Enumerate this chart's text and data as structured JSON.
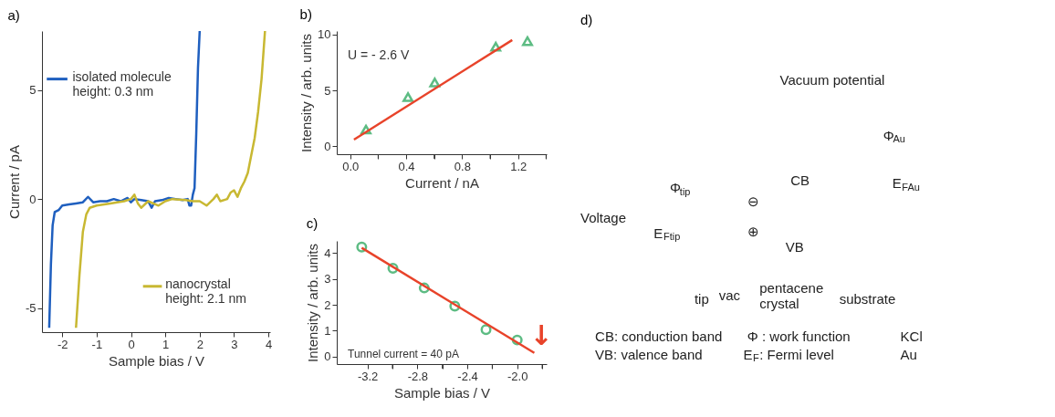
{
  "chart_data": [
    {
      "type": "line",
      "title": "a)",
      "xlabel": "Sample bias  / V",
      "ylabel": "Current / pA",
      "xlim": [
        -2.59,
        4.05
      ],
      "ylim": [
        -6.1,
        7.7
      ],
      "xticks": [
        -2,
        -1,
        0,
        1,
        2,
        3,
        4
      ],
      "yticks": [
        -5,
        0,
        5
      ],
      "grid": false,
      "legend": "left",
      "line_style": "solid",
      "series": [
        {
          "name": "isolated molecule\n height: 0.3 nm",
          "color": "#1f5fbf",
          "x": [
            -2.38,
            -2.33,
            -2.28,
            -2.22,
            -2.1,
            -2.0,
            -1.8,
            -1.6,
            -1.4,
            -1.25,
            -1.1,
            -0.9,
            -0.7,
            -0.5,
            -0.3,
            -0.1,
            0.0,
            0.1,
            0.3,
            0.5,
            0.6,
            0.7,
            0.9,
            1.1,
            1.3,
            1.5,
            1.65,
            1.7,
            1.75,
            1.8,
            1.85,
            1.9,
            1.95,
            2.0
          ],
          "values": [
            -5.9,
            -3.0,
            -1.2,
            -0.6,
            -0.5,
            -0.3,
            -0.25,
            -0.2,
            -0.15,
            0.1,
            -0.15,
            -0.1,
            -0.1,
            0.0,
            -0.1,
            0.05,
            -0.15,
            0.0,
            -0.05,
            -0.1,
            -0.4,
            -0.1,
            -0.05,
            0.05,
            0.0,
            -0.05,
            0.0,
            -0.3,
            -0.3,
            0.2,
            0.5,
            3.0,
            6.0,
            7.7
          ]
        },
        {
          "name": "nanocrystal\n height: 2.1 nm",
          "color": "#c8b832",
          "x": [
            -1.6,
            -1.5,
            -1.4,
            -1.3,
            -1.2,
            -1.0,
            -0.6,
            -0.2,
            0.0,
            0.1,
            0.2,
            0.3,
            0.5,
            0.8,
            1.0,
            1.2,
            1.6,
            1.8,
            2.0,
            2.2,
            2.4,
            2.5,
            2.6,
            2.8,
            2.9,
            3.0,
            3.1,
            3.2,
            3.3,
            3.4,
            3.5,
            3.6,
            3.7,
            3.8,
            3.9
          ],
          "values": [
            -5.9,
            -3.5,
            -1.5,
            -0.7,
            -0.4,
            -0.3,
            -0.2,
            -0.1,
            0.0,
            0.2,
            -0.2,
            -0.4,
            -0.1,
            -0.3,
            -0.1,
            0.0,
            -0.05,
            -0.1,
            -0.1,
            -0.3,
            0.0,
            0.2,
            -0.1,
            0.0,
            0.3,
            0.4,
            0.1,
            0.5,
            0.8,
            1.2,
            2.0,
            2.8,
            4.0,
            5.5,
            7.7
          ]
        }
      ]
    },
    {
      "type": "scatter",
      "title": "b)",
      "xlabel": "Current / nA",
      "ylabel": "Intensity / arb. units",
      "xlim": [
        -0.096,
        1.404
      ],
      "ylim": [
        -0.7,
        10.3
      ],
      "xticks": [
        {
          "value": 0,
          "label": "0.0"
        },
        {
          "value": 0.2,
          "label": null
        },
        0.4,
        {
          "value": 0.6,
          "label": null
        },
        0.8,
        {
          "value": 1.0,
          "label": null
        },
        1.2,
        {
          "value": 1.4,
          "label": null
        }
      ],
      "yticks": [
        0,
        5,
        10
      ],
      "grid": false,
      "annotations": [
        "U = - 2.6 V"
      ],
      "series": [
        {
          "type": "scatter",
          "marker": "triangle",
          "color": "#1aa050",
          "x": [
            0.113,
            0.413,
            0.604,
            1.04,
            1.267
          ],
          "values": [
            1.5,
            4.4,
            5.7,
            8.9,
            9.4
          ]
        },
        {
          "type": "line",
          "marker": "none",
          "color": "#e8432a",
          "x": [
            0.027,
            1.158
          ],
          "values": [
            0.6,
            9.5
          ]
        }
      ]
    },
    {
      "type": "scatter",
      "title": "c)",
      "xlabel": "Sample bias  / V",
      "ylabel": "Intensity / arb. units",
      "xlim": [
        -3.446,
        -1.764
      ],
      "ylim": [
        -0.29,
        4.47
      ],
      "xticks": [
        {
          "value": -3.2,
          "label": "-3.2"
        },
        {
          "value": -3.0,
          "label": null
        },
        {
          "value": -2.8,
          "label": "-2.8"
        },
        {
          "value": -2.6,
          "label": null
        },
        {
          "value": -2.4,
          "label": "-2.4"
        },
        {
          "value": -2.2,
          "label": null
        },
        {
          "value": -2.0,
          "label": "-2.0"
        },
        {
          "value": -1.8,
          "label": null
        }
      ],
      "yticks": [
        0,
        1,
        2,
        3,
        4
      ],
      "grid": false,
      "annotations": [
        "Tunnel current = 40 pA",
        "↓"
      ],
      "series": [
        {
          "type": "scatter",
          "marker": "circle",
          "color": "#1aa050",
          "x": [
            -3.246,
            -2.996,
            -2.745,
            -2.5,
            -2.25,
            -2.0
          ],
          "values": [
            4.23,
            3.41,
            2.65,
            1.95,
            1.04,
            0.64
          ]
        },
        {
          "type": "line",
          "marker": "none",
          "color": "#e8432a",
          "x": [
            -3.246,
            -1.863
          ],
          "values": [
            4.2,
            0.14
          ]
        }
      ]
    },
    {
      "type": "other",
      "title": "d)",
      "annotations": [
        "Vacuum potential",
        "Φ$_{Au}$",
        "CB",
        "E$_{FAu}$",
        "Φ$_{tip}$",
        "Voltage",
        "E$_{Ftip}$",
        "⊖",
        "⊕",
        "VB",
        "tip",
        "vac",
        "pentacene\ncrystal",
        "substrate",
        "CB: conduction band",
        "VB: valence band",
        "Φ : work function",
        "E$_{F}$: Fermi level",
        "KCl",
        "Au"
      ]
    }
  ]
}
